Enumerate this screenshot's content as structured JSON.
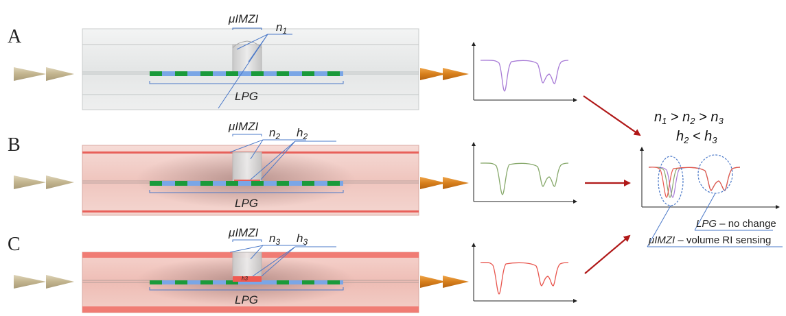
{
  "panels": [
    {
      "letter": "A",
      "imzi": "μIMZI",
      "n_sym": "n",
      "n_sub": "1",
      "h_sym": "",
      "h_sub": "",
      "lpg": "LPG",
      "h_inline": ""
    },
    {
      "letter": "B",
      "imzi": "μIMZI",
      "n_sym": "n",
      "n_sub": "2",
      "h_sym": "h",
      "h_sub": "2",
      "lpg": "LPG",
      "h_inline": ""
    },
    {
      "letter": "C",
      "imzi": "μIMZI",
      "n_sym": "n",
      "n_sub": "3",
      "h_sym": "h",
      "h_sub": "3",
      "lpg": "LPG",
      "h_inline": "h3"
    }
  ],
  "conditions": {
    "line1": {
      "a": "n",
      "a_sub": "1",
      "op1": " > ",
      "b": "n",
      "b_sub": "2",
      "op2": " > ",
      "c": "n",
      "c_sub": "3"
    },
    "line2": {
      "a": "h",
      "a_sub": "2",
      "op1": " < ",
      "b": "h",
      "b_sub": "3"
    }
  },
  "annotations": {
    "lpg_note_label": "LPG",
    "lpg_note_text": " – no change",
    "imzi_note_label": "μIMZI",
    "imzi_note_text": " – volume RI sensing"
  },
  "colors": {
    "cladding_gray": "#e6e8e8",
    "coating_pink": "#f3cfc9",
    "coating_edge": "#e8605a",
    "grating_green": "#1a9a3a",
    "grating_blue": "#7aa6e6",
    "input_arrow": "#cbbf9e",
    "output_arrow": "#d9801e",
    "spectrum_A": "#a77ad6",
    "spectrum_B": "#86a86a",
    "spectrum_C": "#e8554d",
    "red_arrow": "#b01818",
    "leader_blue": "#4a78c8"
  }
}
